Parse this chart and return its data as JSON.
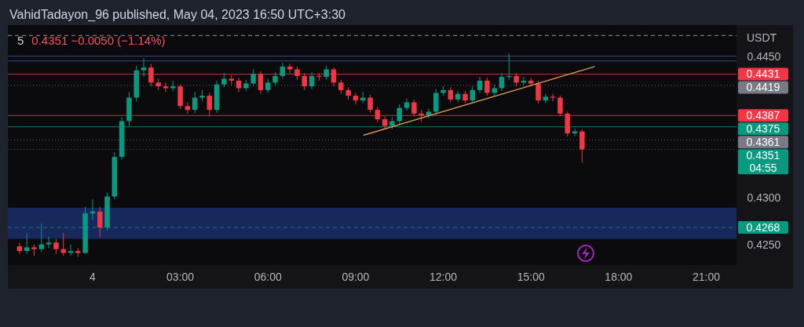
{
  "chart_data": {
    "type": "candlestick",
    "title": "5",
    "subtitle": "0.4351  −0.0050 (−1.14%)",
    "ylabel": "USDT",
    "annotations": [
      "VahidTadayon_96 published, May 04, 2023 16:50 UTC+3:30",
      "04:55"
    ],
    "xlim": [
      "2023-05-03T21:06",
      "2023-05-04T22:02"
    ],
    "ylim": [
      0.42281,
      0.44764
    ],
    "xticks": [
      {
        "value": "2023-05-04",
        "label": "4"
      },
      {
        "value": "2023-05-04T03:00",
        "label": "03:00"
      },
      {
        "value": "2023-05-04T06:00",
        "label": "06:00"
      },
      {
        "value": "2023-05-04T09:00",
        "label": "09:00"
      },
      {
        "value": "2023-05-04T12:00",
        "label": "12:00"
      },
      {
        "value": "2023-05-04T15:00",
        "label": "15:00"
      },
      {
        "value": "2023-05-04T18:00",
        "label": "18:00"
      },
      {
        "value": "2023-05-04T21:00",
        "label": "21:00"
      }
    ],
    "yticks": [
      {
        "value": 0.425,
        "label": "0.4250"
      },
      {
        "value": 0.43,
        "label": "0.4300"
      },
      {
        "value": 0.445,
        "label": "0.4450"
      }
    ],
    "x": [
      "2023-05-03T21:30",
      "2023-05-03T21:45",
      "2023-05-03T22:00",
      "2023-05-03T22:15",
      "2023-05-03T22:30",
      "2023-05-03T22:45",
      "2023-05-03T23:00",
      "2023-05-03T23:15",
      "2023-05-03T23:30",
      "2023-05-03T23:45",
      "2023-05-04T00:00",
      "2023-05-04T00:15",
      "2023-05-04T00:30",
      "2023-05-04T00:45",
      "2023-05-04T01:00",
      "2023-05-04T01:15",
      "2023-05-04T01:30",
      "2023-05-04T01:45",
      "2023-05-04T02:00",
      "2023-05-04T02:15",
      "2023-05-04T02:30",
      "2023-05-04T02:45",
      "2023-05-04T03:00",
      "2023-05-04T03:15",
      "2023-05-04T03:30",
      "2023-05-04T03:45",
      "2023-05-04T04:00",
      "2023-05-04T04:15",
      "2023-05-04T04:30",
      "2023-05-04T04:45",
      "2023-05-04T05:00",
      "2023-05-04T05:15",
      "2023-05-04T05:30",
      "2023-05-04T05:45",
      "2023-05-04T06:00",
      "2023-05-04T06:15",
      "2023-05-04T06:30",
      "2023-05-04T06:45",
      "2023-05-04T07:00",
      "2023-05-04T07:15",
      "2023-05-04T07:30",
      "2023-05-04T07:45",
      "2023-05-04T08:00",
      "2023-05-04T08:15",
      "2023-05-04T08:30",
      "2023-05-04T08:45",
      "2023-05-04T09:00",
      "2023-05-04T09:15",
      "2023-05-04T09:30",
      "2023-05-04T09:45",
      "2023-05-04T10:00",
      "2023-05-04T10:15",
      "2023-05-04T10:30",
      "2023-05-04T10:45",
      "2023-05-04T11:00",
      "2023-05-04T11:15",
      "2023-05-04T11:30",
      "2023-05-04T11:45",
      "2023-05-04T12:00",
      "2023-05-04T12:15",
      "2023-05-04T12:30",
      "2023-05-04T12:45",
      "2023-05-04T13:00",
      "2023-05-04T13:15",
      "2023-05-04T13:30",
      "2023-05-04T13:45",
      "2023-05-04T14:00",
      "2023-05-04T14:15",
      "2023-05-04T14:30",
      "2023-05-04T14:45",
      "2023-05-04T15:00",
      "2023-05-04T15:15",
      "2023-05-04T15:30",
      "2023-05-04T15:45",
      "2023-05-04T16:00",
      "2023-05-04T16:15",
      "2023-05-04T16:30",
      "2023-05-04T16:45"
    ],
    "ohlc": [
      [
        0.4248,
        0.4252,
        0.424,
        0.4243
      ],
      [
        0.4243,
        0.4262,
        0.424,
        0.4247
      ],
      [
        0.4247,
        0.425,
        0.4238,
        0.4245
      ],
      [
        0.4245,
        0.4272,
        0.4242,
        0.425
      ],
      [
        0.425,
        0.4258,
        0.4246,
        0.4252
      ],
      [
        0.4252,
        0.4256,
        0.424,
        0.4245
      ],
      [
        0.4245,
        0.4262,
        0.4238,
        0.4241
      ],
      [
        0.4241,
        0.425,
        0.4238,
        0.4243
      ],
      [
        0.4243,
        0.4246,
        0.4237,
        0.4241
      ],
      [
        0.4241,
        0.429,
        0.424,
        0.4283
      ],
      [
        0.4283,
        0.4298,
        0.4276,
        0.4285
      ],
      [
        0.4285,
        0.429,
        0.4258,
        0.4268
      ],
      [
        0.4268,
        0.4305,
        0.4265,
        0.4301
      ],
      [
        0.4301,
        0.4348,
        0.4298,
        0.4343
      ],
      [
        0.4343,
        0.4385,
        0.434,
        0.4381
      ],
      [
        0.4381,
        0.4412,
        0.4376,
        0.4406
      ],
      [
        0.4406,
        0.444,
        0.4402,
        0.4435
      ],
      [
        0.4435,
        0.4448,
        0.4428,
        0.4438
      ],
      [
        0.4438,
        0.4442,
        0.4418,
        0.4422
      ],
      [
        0.4422,
        0.4426,
        0.4414,
        0.4418
      ],
      [
        0.4418,
        0.4422,
        0.4412,
        0.4416
      ],
      [
        0.4416,
        0.4424,
        0.4413,
        0.4418
      ],
      [
        0.4418,
        0.442,
        0.4394,
        0.4397
      ],
      [
        0.4397,
        0.4401,
        0.4389,
        0.4393
      ],
      [
        0.4393,
        0.4412,
        0.439,
        0.4406
      ],
      [
        0.4406,
        0.4414,
        0.4402,
        0.4408
      ],
      [
        0.4408,
        0.4411,
        0.4386,
        0.4393
      ],
      [
        0.4393,
        0.4424,
        0.439,
        0.442
      ],
      [
        0.442,
        0.4432,
        0.4417,
        0.4426
      ],
      [
        0.4426,
        0.443,
        0.442,
        0.4424
      ],
      [
        0.4424,
        0.4427,
        0.4412,
        0.4416
      ],
      [
        0.4416,
        0.4425,
        0.4413,
        0.4421
      ],
      [
        0.4421,
        0.4436,
        0.4418,
        0.4431
      ],
      [
        0.4431,
        0.4434,
        0.441,
        0.4414
      ],
      [
        0.4414,
        0.4426,
        0.4411,
        0.4422
      ],
      [
        0.4422,
        0.4433,
        0.4419,
        0.4429
      ],
      [
        0.4429,
        0.4443,
        0.4426,
        0.4439
      ],
      [
        0.4439,
        0.4442,
        0.4432,
        0.4436
      ],
      [
        0.4436,
        0.4439,
        0.4425,
        0.4429
      ],
      [
        0.4429,
        0.4432,
        0.4414,
        0.4418
      ],
      [
        0.4418,
        0.4433,
        0.4415,
        0.4429
      ],
      [
        0.4429,
        0.4432,
        0.4424,
        0.4428
      ],
      [
        0.4428,
        0.444,
        0.4425,
        0.4436
      ],
      [
        0.4436,
        0.4438,
        0.4418,
        0.4422
      ],
      [
        0.4422,
        0.4425,
        0.441,
        0.4414
      ],
      [
        0.4414,
        0.4417,
        0.4404,
        0.4408
      ],
      [
        0.4408,
        0.4411,
        0.4399,
        0.4403
      ],
      [
        0.4403,
        0.4412,
        0.44,
        0.4406
      ],
      [
        0.4406,
        0.4409,
        0.439,
        0.4393
      ],
      [
        0.4393,
        0.4396,
        0.438,
        0.4383
      ],
      [
        0.4383,
        0.4386,
        0.4373,
        0.4376
      ],
      [
        0.4376,
        0.4385,
        0.4373,
        0.4381
      ],
      [
        0.4381,
        0.4399,
        0.4378,
        0.4395
      ],
      [
        0.4395,
        0.4405,
        0.4392,
        0.4401
      ],
      [
        0.4401,
        0.4404,
        0.4386,
        0.4389
      ],
      [
        0.4389,
        0.4393,
        0.438,
        0.4387
      ],
      [
        0.4387,
        0.4394,
        0.4384,
        0.4391
      ],
      [
        0.4391,
        0.4415,
        0.4388,
        0.4411
      ],
      [
        0.4411,
        0.4418,
        0.4408,
        0.4414
      ],
      [
        0.4414,
        0.4417,
        0.4401,
        0.4404
      ],
      [
        0.4404,
        0.4413,
        0.4401,
        0.441
      ],
      [
        0.441,
        0.4413,
        0.44,
        0.4403
      ],
      [
        0.4403,
        0.4418,
        0.44,
        0.4414
      ],
      [
        0.4414,
        0.4428,
        0.4411,
        0.4424
      ],
      [
        0.4424,
        0.4427,
        0.4408,
        0.4411
      ],
      [
        0.4411,
        0.442,
        0.4408,
        0.4416
      ],
      [
        0.4416,
        0.4432,
        0.4413,
        0.4428
      ],
      [
        0.4428,
        0.4453,
        0.4425,
        0.4429
      ],
      [
        0.4429,
        0.4432,
        0.4418,
        0.4422
      ],
      [
        0.4422,
        0.4428,
        0.4419,
        0.4424
      ],
      [
        0.4424,
        0.4427,
        0.4418,
        0.4421
      ],
      [
        0.4421,
        0.4424,
        0.44,
        0.4403
      ],
      [
        0.4403,
        0.441,
        0.44,
        0.4407
      ],
      [
        0.4407,
        0.441,
        0.4402,
        0.4406
      ],
      [
        0.4406,
        0.4408,
        0.4386,
        0.4389
      ],
      [
        0.4389,
        0.4391,
        0.4365,
        0.4368
      ],
      [
        0.4368,
        0.4373,
        0.4365,
        0.437
      ],
      [
        0.437,
        0.4372,
        0.4337,
        0.4351
      ]
    ],
    "series": [
      {
        "type": "line",
        "color": "#d9955a",
        "x": [
          "2023-05-04T09:16",
          "2023-05-04T17:11"
        ],
        "values": [
          0.4366,
          0.4439
        ]
      }
    ],
    "bands": [
      {
        "axis": "y",
        "from": 0.4256,
        "to": 0.4289,
        "color": "#1a2f6b"
      }
    ],
    "ref_lines": [
      {
        "axis": "y",
        "value": 0.4472,
        "color": "#b2b5be",
        "line_style": "dashed"
      },
      {
        "axis": "y",
        "value": 0.445,
        "color": "#3d5a9e"
      },
      {
        "axis": "y",
        "value": 0.4445,
        "color": "#3d5a9e"
      },
      {
        "axis": "y",
        "value": 0.4431,
        "label": "0.4431",
        "color": "#f23645"
      },
      {
        "axis": "y",
        "value": 0.4419,
        "label": "0.4419",
        "color": "#787b86",
        "line_style": "dotted"
      },
      {
        "axis": "y",
        "value": 0.4387,
        "label": "0.4387",
        "color": "#f23645"
      },
      {
        "axis": "y",
        "value": 0.4375,
        "label": "0.4375",
        "color": "#089981"
      },
      {
        "axis": "y",
        "value": 0.4361,
        "label": "0.4361",
        "color": "#787b86",
        "line_style": "dotted"
      },
      {
        "axis": "y",
        "value": 0.4351,
        "label": "0.4351",
        "color": "#089981",
        "line_style": "dotted"
      },
      {
        "axis": "y",
        "value": 0.4268,
        "label": "0.4268",
        "color": "#089981",
        "line_style": "dashed"
      }
    ]
  }
}
